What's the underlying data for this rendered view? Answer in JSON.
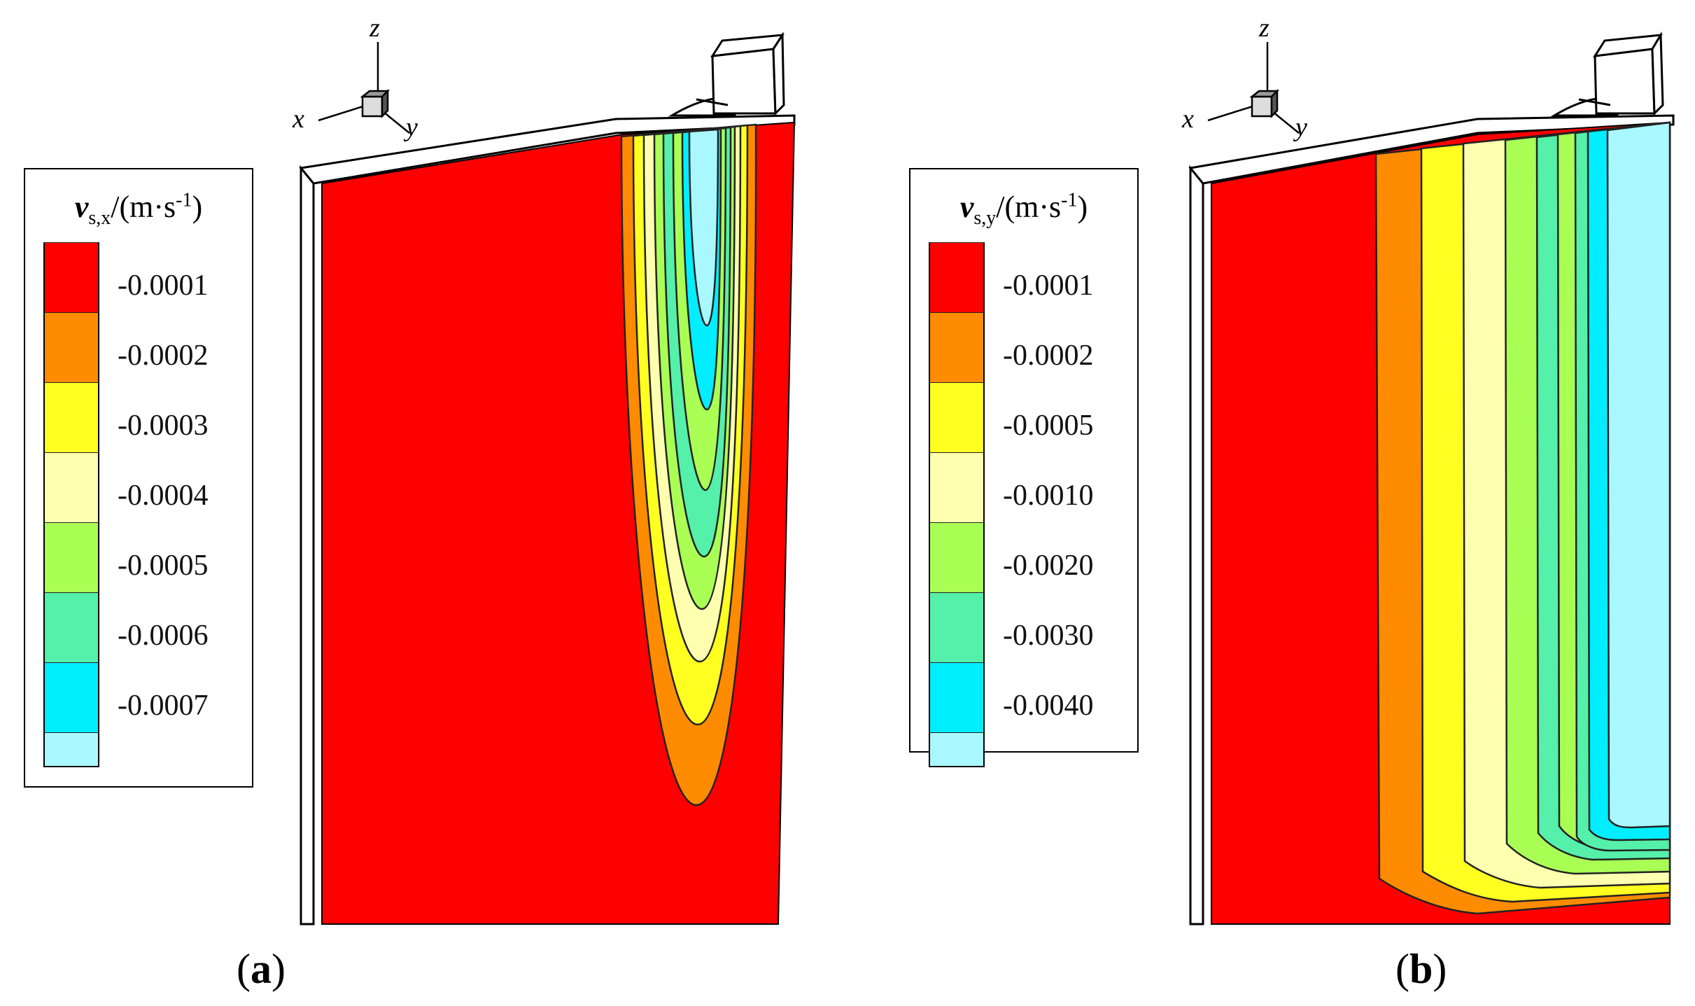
{
  "panels": [
    {
      "id": "a",
      "caption": "a",
      "legend": {
        "var_symbol": "v",
        "subscript": "s,x",
        "unit_pre": "/(m·s",
        "unit_exp": "-1",
        "unit_post": ")",
        "colors": [
          "#ff0000",
          "#ff8c00",
          "#ffff22",
          "#ffffb0",
          "#aaff55",
          "#55f0aa",
          "#00eeff",
          "#aaf8ff"
        ],
        "levels": [
          "-0.0001",
          "-0.0002",
          "-0.0003",
          "-0.0004",
          "-0.0005",
          "-0.0006",
          "-0.0007"
        ]
      },
      "axes": {
        "x": "x",
        "y": "y",
        "z": "z"
      }
    },
    {
      "id": "b",
      "caption": "b",
      "legend": {
        "var_symbol": "v",
        "subscript": "s,y",
        "unit_pre": "/(m·s",
        "unit_exp": "-1",
        "unit_post": ")",
        "colors": [
          "#ff0000",
          "#ff8c00",
          "#ffff22",
          "#ffffb0",
          "#aaff55",
          "#55f0aa",
          "#00eeff",
          "#aaf8ff"
        ],
        "levels": [
          "-0.0001",
          "-0.0002",
          "-0.0005",
          "-0.0010",
          "-0.0020",
          "-0.0030",
          "-0.0040"
        ]
      },
      "axes": {
        "x": "x",
        "y": "y",
        "z": "z"
      }
    }
  ]
}
